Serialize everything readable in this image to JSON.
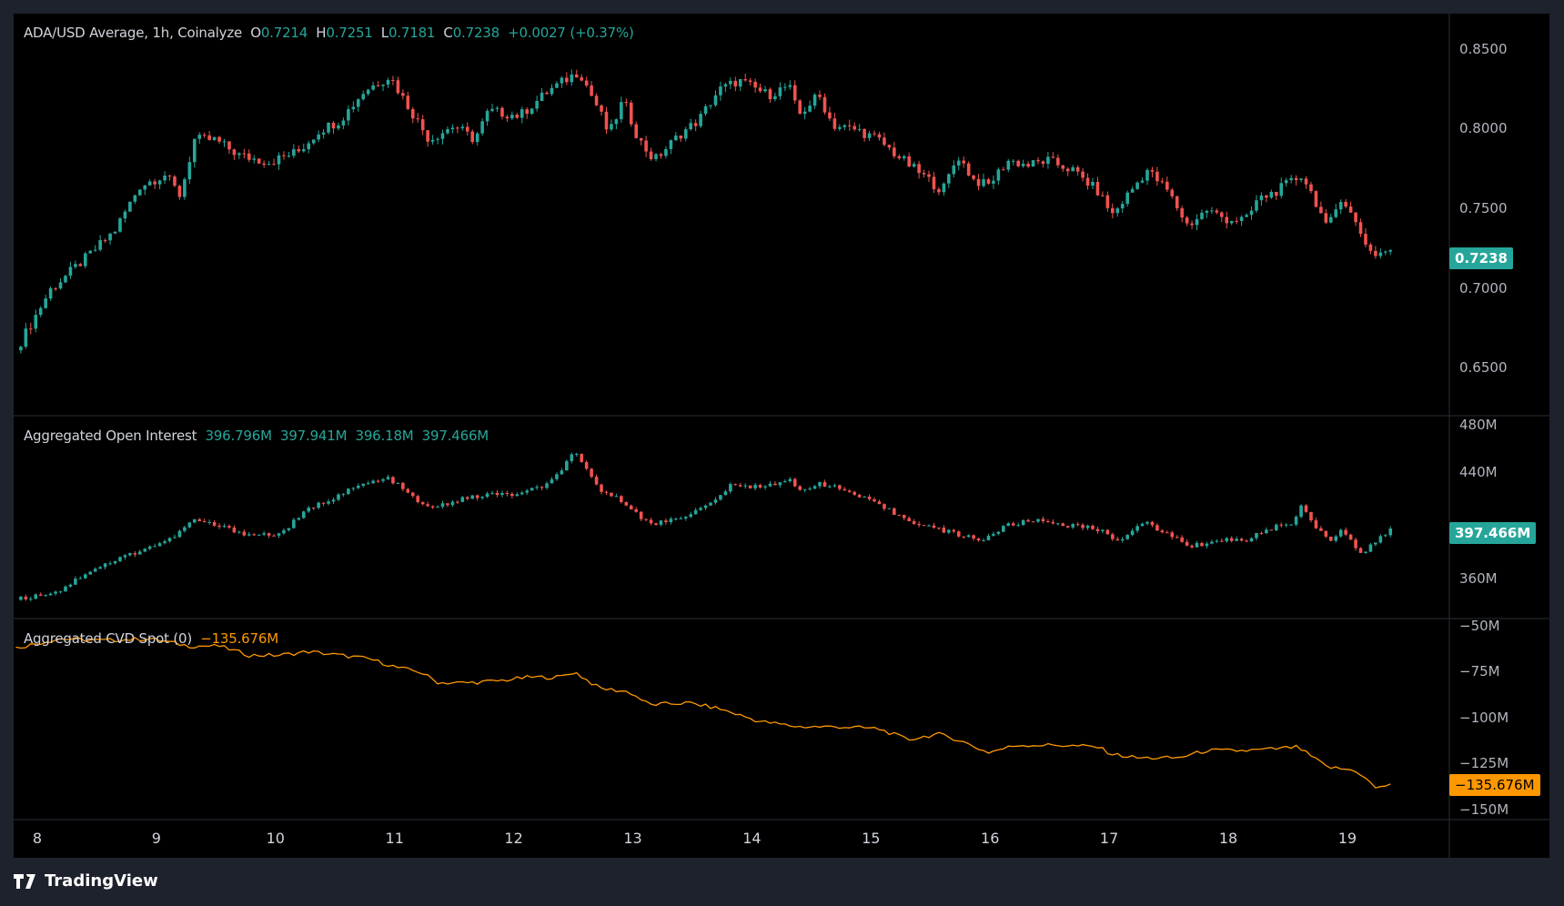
{
  "header": {
    "symbol": "ADA/USD Average, 1h, Coinalyze",
    "o_label": "O",
    "o": "0.7214",
    "h_label": "H",
    "h": "0.7251",
    "l_label": "L",
    "l": "0.7181",
    "c_label": "C",
    "c": "0.7238",
    "change": "+0.0027 (+0.37%)"
  },
  "oi_legend": {
    "title": "Aggregated Open Interest",
    "o": "396.796M",
    "h": "397.941M",
    "l": "396.18M",
    "c": "397.466M"
  },
  "cvd_legend": {
    "title": "Aggregated CVD Spot (0)",
    "value": "−135.676M"
  },
  "brand": "TradingView",
  "colors": {
    "up": "#26a69a",
    "down": "#ef5350",
    "cvd": "#ff9800",
    "bg": "#000000",
    "frame": "#1e222d"
  },
  "chart_data": [
    {
      "type": "candlestick",
      "title": "ADA/USD Average, 1h, Coinalyze",
      "x_unit": "day",
      "y_ticks": [
        "0.8500",
        "0.8000",
        "0.7500",
        "0.7000",
        "0.6500"
      ],
      "ylim": [
        0.62,
        0.872
      ],
      "last_value": "0.7238",
      "points": [
        [
          7.82,
          0.661
        ],
        [
          8.11,
          0.699
        ],
        [
          8.44,
          0.721
        ],
        [
          8.65,
          0.736
        ],
        [
          8.86,
          0.764
        ],
        [
          9.07,
          0.771
        ],
        [
          9.2,
          0.758
        ],
        [
          9.32,
          0.793
        ],
        [
          9.49,
          0.793
        ],
        [
          9.7,
          0.783
        ],
        [
          9.95,
          0.779
        ],
        [
          10.2,
          0.786
        ],
        [
          10.37,
          0.799
        ],
        [
          10.54,
          0.805
        ],
        [
          10.75,
          0.824
        ],
        [
          10.96,
          0.833
        ],
        [
          11.08,
          0.818
        ],
        [
          11.29,
          0.793
        ],
        [
          11.5,
          0.802
        ],
        [
          11.67,
          0.793
        ],
        [
          11.79,
          0.811
        ],
        [
          12.05,
          0.808
        ],
        [
          12.3,
          0.824
        ],
        [
          12.55,
          0.836
        ],
        [
          12.72,
          0.811
        ],
        [
          12.8,
          0.796
        ],
        [
          12.92,
          0.818
        ],
        [
          13.05,
          0.793
        ],
        [
          13.18,
          0.78
        ],
        [
          13.39,
          0.796
        ],
        [
          13.55,
          0.805
        ],
        [
          13.72,
          0.824
        ],
        [
          13.89,
          0.83
        ],
        [
          14.14,
          0.821
        ],
        [
          14.31,
          0.827
        ],
        [
          14.39,
          0.808
        ],
        [
          14.56,
          0.821
        ],
        [
          14.68,
          0.802
        ],
        [
          14.89,
          0.799
        ],
        [
          15.06,
          0.793
        ],
        [
          15.27,
          0.78
        ],
        [
          15.48,
          0.768
        ],
        [
          15.6,
          0.761
        ],
        [
          15.73,
          0.783
        ],
        [
          15.86,
          0.768
        ],
        [
          15.98,
          0.764
        ],
        [
          16.15,
          0.78
        ],
        [
          16.32,
          0.777
        ],
        [
          16.48,
          0.78
        ],
        [
          16.69,
          0.774
        ],
        [
          16.9,
          0.761
        ],
        [
          17.03,
          0.746
        ],
        [
          17.15,
          0.758
        ],
        [
          17.32,
          0.774
        ],
        [
          17.49,
          0.761
        ],
        [
          17.66,
          0.739
        ],
        [
          17.82,
          0.749
        ],
        [
          17.99,
          0.743
        ],
        [
          18.16,
          0.743
        ],
        [
          18.24,
          0.755
        ],
        [
          18.41,
          0.761
        ],
        [
          18.62,
          0.771
        ],
        [
          18.75,
          0.752
        ],
        [
          18.83,
          0.736
        ],
        [
          18.95,
          0.758
        ],
        [
          19.08,
          0.739
        ],
        [
          19.21,
          0.721
        ],
        [
          19.37,
          0.7238
        ]
      ]
    },
    {
      "type": "candlestick",
      "title": "Aggregated Open Interest",
      "x_unit": "day",
      "y_ticks": [
        "480M",
        "440M",
        "360M"
      ],
      "ylim": [
        330,
        482
      ],
      "last_value": "397.466M",
      "points": [
        [
          7.82,
          344
        ],
        [
          8.19,
          351
        ],
        [
          8.44,
          366
        ],
        [
          8.86,
          381
        ],
        [
          9.11,
          389
        ],
        [
          9.32,
          404
        ],
        [
          9.78,
          393
        ],
        [
          10.03,
          393
        ],
        [
          10.28,
          412
        ],
        [
          10.54,
          423
        ],
        [
          10.75,
          431
        ],
        [
          10.96,
          435
        ],
        [
          11.12,
          423
        ],
        [
          11.29,
          412
        ],
        [
          11.54,
          419
        ],
        [
          11.79,
          423
        ],
        [
          12.05,
          423
        ],
        [
          12.3,
          431
        ],
        [
          12.51,
          454
        ],
        [
          12.72,
          427
        ],
        [
          12.97,
          415
        ],
        [
          13.14,
          400
        ],
        [
          13.47,
          408
        ],
        [
          13.64,
          415
        ],
        [
          13.81,
          429
        ],
        [
          14.06,
          429
        ],
        [
          14.31,
          434
        ],
        [
          14.39,
          425
        ],
        [
          14.56,
          432
        ],
        [
          14.81,
          425
        ],
        [
          15.06,
          415
        ],
        [
          15.31,
          404
        ],
        [
          15.56,
          397
        ],
        [
          15.73,
          393
        ],
        [
          15.94,
          389
        ],
        [
          16.15,
          400
        ],
        [
          16.4,
          404
        ],
        [
          16.65,
          400
        ],
        [
          16.9,
          397
        ],
        [
          17.07,
          389
        ],
        [
          17.32,
          402
        ],
        [
          17.49,
          393
        ],
        [
          17.7,
          384
        ],
        [
          17.91,
          389
        ],
        [
          18.16,
          389
        ],
        [
          18.33,
          397
        ],
        [
          18.54,
          402
        ],
        [
          18.62,
          415
        ],
        [
          18.75,
          397
        ],
        [
          18.87,
          389
        ],
        [
          18.95,
          397
        ],
        [
          19.12,
          378
        ],
        [
          19.37,
          397.466
        ]
      ]
    },
    {
      "type": "line",
      "title": "Aggregated CVD Spot (0)",
      "x_unit": "day",
      "y_ticks": [
        "−50M",
        "−75M",
        "−100M",
        "−125M",
        "−150M"
      ],
      "ylim": [
        -155.6,
        -46
      ],
      "last_value": "−135.676M",
      "points": [
        [
          7.82,
          -62
        ],
        [
          8.19,
          -57
        ],
        [
          8.53,
          -58
        ],
        [
          8.95,
          -57
        ],
        [
          9.28,
          -61
        ],
        [
          9.53,
          -61
        ],
        [
          9.78,
          -66
        ],
        [
          10.03,
          -66
        ],
        [
          10.28,
          -64
        ],
        [
          10.54,
          -66
        ],
        [
          10.79,
          -68
        ],
        [
          11.04,
          -73
        ],
        [
          11.21,
          -75
        ],
        [
          11.37,
          -81
        ],
        [
          11.62,
          -81
        ],
        [
          11.87,
          -80
        ],
        [
          12.13,
          -78
        ],
        [
          12.38,
          -78
        ],
        [
          12.51,
          -75
        ],
        [
          12.72,
          -84
        ],
        [
          12.97,
          -86
        ],
        [
          13.14,
          -93
        ],
        [
          13.47,
          -92
        ],
        [
          13.72,
          -95
        ],
        [
          14.06,
          -102
        ],
        [
          14.39,
          -105
        ],
        [
          14.73,
          -105
        ],
        [
          15.06,
          -106
        ],
        [
          15.31,
          -112
        ],
        [
          15.56,
          -109
        ],
        [
          15.73,
          -112
        ],
        [
          15.98,
          -119
        ],
        [
          16.23,
          -115
        ],
        [
          16.57,
          -115
        ],
        [
          16.9,
          -116
        ],
        [
          17.03,
          -120
        ],
        [
          17.24,
          -122
        ],
        [
          17.57,
          -122
        ],
        [
          17.82,
          -118
        ],
        [
          18.16,
          -118
        ],
        [
          18.41,
          -117
        ],
        [
          18.58,
          -116
        ],
        [
          18.83,
          -127
        ],
        [
          19.08,
          -129
        ],
        [
          19.25,
          -139
        ],
        [
          19.37,
          -135.676
        ]
      ]
    }
  ],
  "x_axis": {
    "ticks": [
      "8",
      "9",
      "10",
      "11",
      "12",
      "13",
      "14",
      "15",
      "16",
      "17",
      "18",
      "19"
    ],
    "tick_days": [
      8,
      9,
      10,
      11,
      12,
      13,
      14,
      15,
      16,
      17,
      18,
      19
    ]
  }
}
